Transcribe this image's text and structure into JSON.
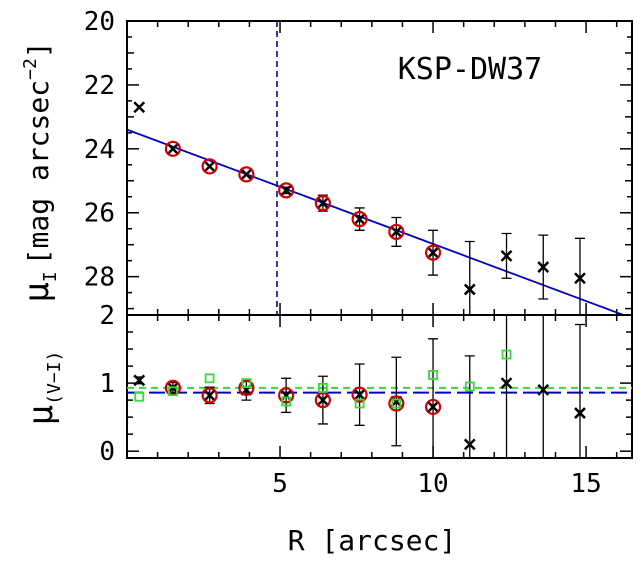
{
  "chart_data": [
    {
      "type": "scatter",
      "panel": "top",
      "annotation": "KSP-DW37",
      "ylabel": "μ_I [mag arcsec^-2]",
      "ylabel_parts": {
        "symbol": "μ",
        "sub": "I",
        "bracket_open": "[",
        "unit": "mag arcsec",
        "sup": "−2",
        "bracket_close": "]"
      },
      "xlim": [
        0,
        16.5
      ],
      "ylim": [
        29.2,
        20
      ],
      "y_inverted": true,
      "yticks": [
        20,
        22,
        24,
        26,
        28
      ],
      "ytick_labels": [
        "20",
        "22",
        "24",
        "26",
        "28"
      ],
      "vertical_line": {
        "x": 4.9,
        "style": "dashed",
        "color": "#0a0a8a"
      },
      "fit_line": {
        "x": [
          0,
          16.5
        ],
        "y": [
          23.4,
          29.3
        ],
        "color": "#0000c0"
      },
      "series": [
        {
          "marker": "x",
          "color": "#000000",
          "x": [
            0.4,
            1.5,
            2.7,
            3.9,
            5.2,
            6.4,
            7.6,
            8.8,
            10.0,
            11.2,
            12.4,
            13.6,
            14.8
          ],
          "y": [
            22.7,
            24.0,
            24.55,
            24.8,
            25.3,
            25.7,
            26.2,
            26.6,
            27.25,
            28.4,
            27.35,
            27.7,
            28.05
          ],
          "yerr": [
            0.0,
            0.0,
            0.0,
            0.0,
            0.1,
            0.25,
            0.35,
            0.45,
            0.7,
            1.5,
            0.7,
            1.0,
            1.25
          ]
        },
        {
          "marker": "open-circle",
          "color": "#d00000",
          "x": [
            1.5,
            2.7,
            3.9,
            5.2,
            6.4,
            7.6,
            8.8,
            10.0
          ],
          "y": [
            24.0,
            24.55,
            24.8,
            25.3,
            25.7,
            26.2,
            26.6,
            27.25
          ]
        }
      ]
    },
    {
      "type": "scatter",
      "panel": "bottom",
      "xlabel": "R [arcsec]",
      "ylabel": "μ_(V−I)",
      "ylabel_parts": {
        "symbol": "μ",
        "sub": "(V−I)"
      },
      "xlim": [
        0,
        16.5
      ],
      "ylim": [
        -0.1,
        2.0
      ],
      "xticks": [
        5,
        10,
        15
      ],
      "xtick_labels": [
        "5",
        "10",
        "15"
      ],
      "yticks": [
        0,
        1,
        2
      ],
      "ytick_labels": [
        "0",
        "1",
        "2"
      ],
      "hlines": [
        {
          "y": 0.93,
          "style": "dashed",
          "color": "#33dd33"
        },
        {
          "y": 0.86,
          "style": "long-dash",
          "color": "#0000c0"
        }
      ],
      "series": [
        {
          "marker": "x",
          "color": "#000000",
          "x": [
            0.4,
            1.5,
            2.7,
            3.9,
            5.2,
            6.4,
            7.6,
            8.8,
            10.0,
            11.2,
            12.4,
            13.6,
            14.8
          ],
          "y": [
            1.04,
            0.93,
            0.82,
            0.9,
            0.82,
            0.75,
            0.83,
            0.73,
            0.65,
            0.1,
            1.0,
            0.9,
            0.56
          ],
          "yerr": [
            0.05,
            0.08,
            0.12,
            0.15,
            0.25,
            0.35,
            0.45,
            0.65,
            1.0,
            1.3,
            1.1,
            1.2,
            1.3
          ]
        },
        {
          "marker": "open-circle",
          "color": "#d00000",
          "x": [
            1.5,
            2.7,
            3.9,
            5.2,
            6.4,
            7.6,
            8.8,
            10.0
          ],
          "y": [
            0.93,
            0.82,
            0.93,
            0.82,
            0.75,
            0.83,
            0.7,
            0.65
          ]
        },
        {
          "marker": "open-square",
          "color": "#33dd33",
          "x": [
            0.4,
            1.5,
            2.7,
            3.9,
            5.2,
            6.4,
            7.6,
            8.8,
            10.0,
            11.2,
            12.4
          ],
          "y": [
            0.8,
            0.88,
            1.07,
            1.0,
            0.73,
            0.93,
            0.7,
            0.7,
            1.12,
            0.95,
            1.42
          ]
        }
      ]
    }
  ]
}
